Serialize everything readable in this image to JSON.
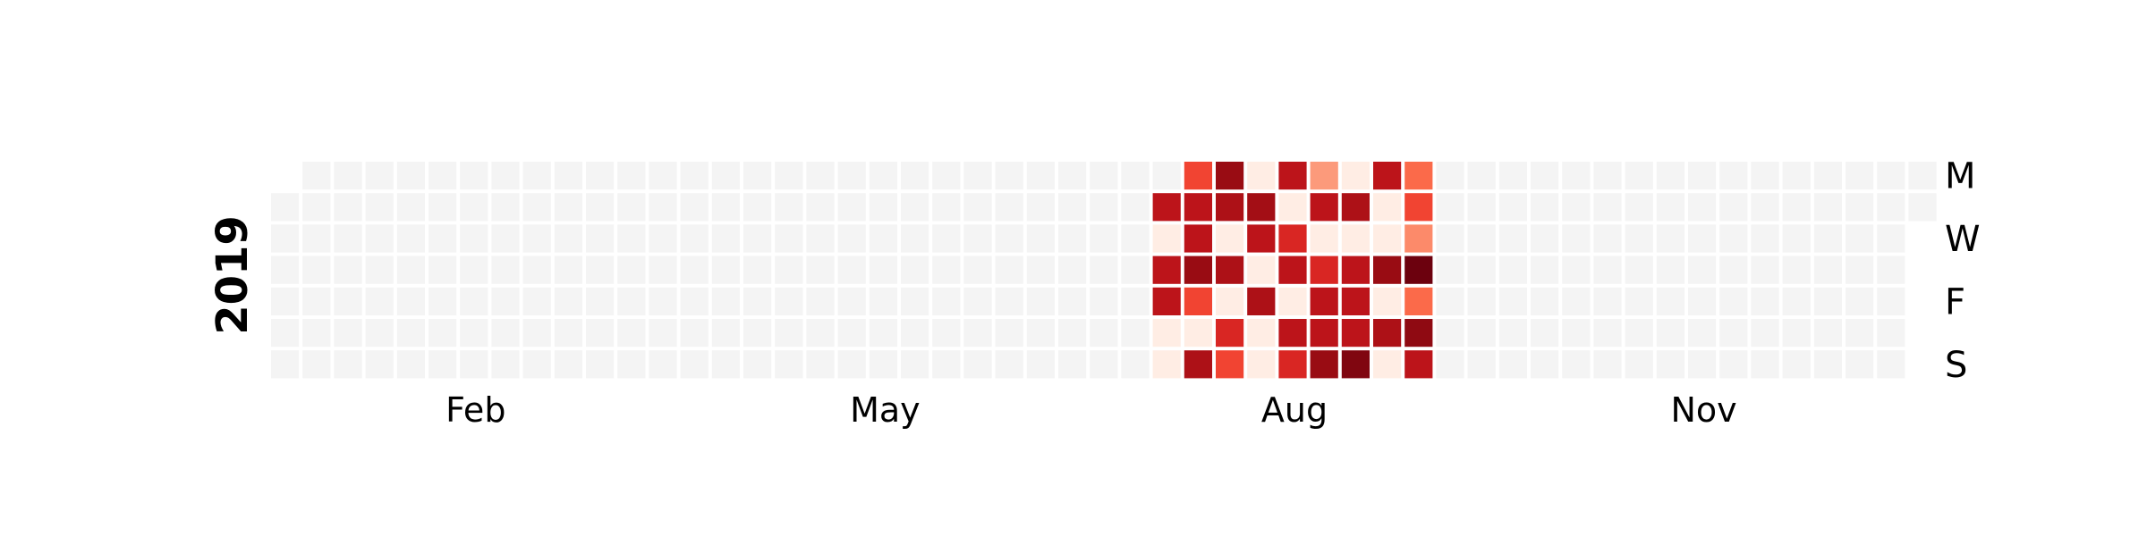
{
  "chart_data": {
    "type": "heatmap",
    "year": "2019",
    "month_ticks": [
      {
        "label": "Feb",
        "week": 6.5
      },
      {
        "label": "May",
        "week": 19.5
      },
      {
        "label": "Aug",
        "week": 32.5
      },
      {
        "label": "Nov",
        "week": 45.5
      }
    ],
    "day_ticks": [
      {
        "label": "M",
        "day": 0
      },
      {
        "label": "W",
        "day": 2
      },
      {
        "label": "F",
        "day": 4
      },
      {
        "label": "S",
        "day": 6
      }
    ],
    "first_weekday": 1,
    "num_weeks": 53,
    "active_weeks": [
      28,
      36
    ],
    "empty_color": "#f4f4f4",
    "colormap": "Reds",
    "value_range": [
      0,
      1
    ],
    "values": [
      [
        null,
        0.8,
        0.05,
        0.8,
        0.8,
        0.05,
        0.05
      ],
      [
        0.6,
        0.8,
        0.8,
        0.9,
        0.6,
        0.05,
        0.85
      ],
      [
        0.9,
        0.85,
        0.05,
        0.85,
        0.05,
        0.7,
        0.6
      ],
      [
        0.05,
        0.88,
        0.8,
        0.05,
        0.85,
        0.05,
        0.05
      ],
      [
        0.8,
        0.05,
        0.7,
        0.8,
        0.05,
        0.8,
        0.7
      ],
      [
        0.35,
        0.8,
        0.05,
        0.7,
        0.8,
        0.8,
        0.9
      ],
      [
        0.05,
        0.85,
        0.05,
        0.8,
        0.8,
        0.8,
        0.95
      ],
      [
        0.8,
        0.05,
        0.05,
        0.9,
        0.05,
        0.85,
        0.05
      ],
      [
        0.5,
        0.6,
        0.4,
        0.99,
        0.5,
        0.92,
        0.8
      ]
    ]
  }
}
